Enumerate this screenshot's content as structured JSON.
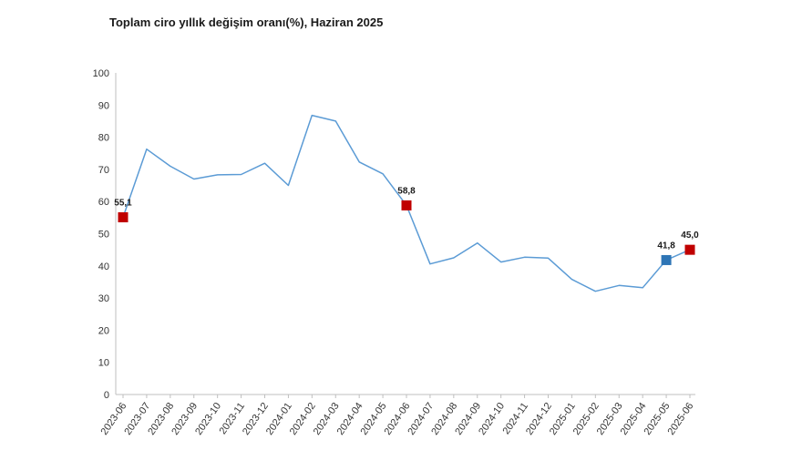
{
  "chart_data": {
    "type": "line",
    "title": "Toplam ciro yıllık değişim oranı(%), Haziran 2025",
    "xlabel": "",
    "ylabel": "",
    "ylim": [
      0,
      100
    ],
    "yticks": [
      "0",
      "10",
      "20",
      "30",
      "40",
      "50",
      "60",
      "70",
      "80",
      "90",
      "100"
    ],
    "grid": false,
    "categories": [
      "2023-06",
      "2023-07",
      "2023-08",
      "2023-09",
      "2023-10",
      "2023-11",
      "2023-12",
      "2024-01",
      "2024-02",
      "2024-03",
      "2024-04",
      "2024-05",
      "2024-06",
      "2024-07",
      "2024-08",
      "2024-09",
      "2024-10",
      "2024-11",
      "2024-12",
      "2025-01",
      "2025-02",
      "2025-03",
      "2025-04",
      "2025-05",
      "2025-06"
    ],
    "series": [
      {
        "values": [
          55.1,
          76.3,
          71.0,
          67.0,
          68.3,
          68.4,
          71.9,
          65.0,
          86.8,
          85.0,
          72.3,
          68.6,
          58.8,
          40.6,
          42.5,
          47.1,
          41.2,
          42.7,
          42.4,
          35.8,
          32.1,
          33.9,
          33.2,
          41.8,
          45.0
        ]
      }
    ],
    "line_color": "#5b9bd5",
    "highlighted_points": [
      {
        "index": 0,
        "label": "55,1",
        "color": "#c00000"
      },
      {
        "index": 12,
        "label": "58,8",
        "color": "#c00000"
      },
      {
        "index": 23,
        "label": "41,8",
        "color": "#2e75b6"
      },
      {
        "index": 24,
        "label": "45,0",
        "color": "#c00000"
      }
    ]
  }
}
